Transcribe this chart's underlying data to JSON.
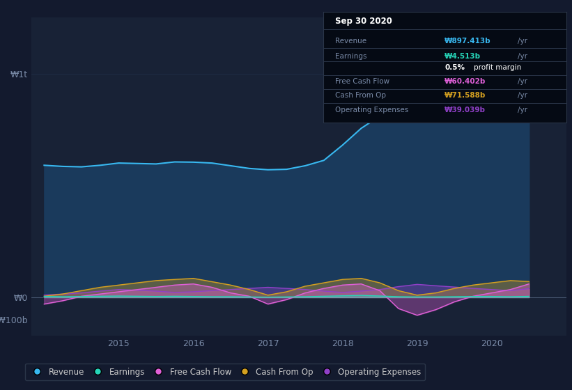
{
  "bg_color": "#131a2e",
  "plot_bg_color": "#182236",
  "grid_color": "#1e2d45",
  "ylabel_color": "#7a8ba8",
  "xtick_labels": [
    "2015",
    "2016",
    "2017",
    "2018",
    "2019",
    "2020"
  ],
  "revenue_color": "#38b8f0",
  "revenue_fill": "#1a3a5c",
  "earnings_color": "#26d4b8",
  "fcf_color": "#e060d8",
  "cashfromop_color": "#d4a020",
  "opex_color": "#9040c8",
  "legend": [
    {
      "label": "Revenue",
      "color": "#38b8f0"
    },
    {
      "label": "Earnings",
      "color": "#26d4b8"
    },
    {
      "label": "Free Cash Flow",
      "color": "#e060d8"
    },
    {
      "label": "Cash From Op",
      "color": "#d4a020"
    },
    {
      "label": "Operating Expenses",
      "color": "#9040c8"
    }
  ],
  "tooltip_bg": "#050a14",
  "tooltip_border": "#2a3548",
  "tooltip_title": "Sep 30 2020",
  "tooltip_rows": [
    {
      "label": "Revenue",
      "value": "₩897.413b",
      "unit": "/yr",
      "label_color": "#7a8ba8",
      "value_color": "#38b8f0"
    },
    {
      "label": "Earnings",
      "value": "₩4.513b",
      "unit": "/yr",
      "label_color": "#7a8ba8",
      "value_color": "#26d4b8"
    },
    {
      "label": "profit_margin",
      "value": "0.5%",
      "unit": "profit margin",
      "label_color": "#ffffff",
      "value_color": "#ffffff"
    },
    {
      "label": "Free Cash Flow",
      "value": "₩60.402b",
      "unit": "/yr",
      "label_color": "#7a8ba8",
      "value_color": "#e060d8"
    },
    {
      "label": "Cash From Op",
      "value": "₩71.588b",
      "unit": "/yr",
      "label_color": "#7a8ba8",
      "value_color": "#d4a020"
    },
    {
      "label": "Operating Expenses",
      "value": "₩39.039b",
      "unit": "/yr",
      "label_color": "#7a8ba8",
      "value_color": "#9040c8"
    }
  ],
  "quarters": [
    2014.0,
    2014.25,
    2014.5,
    2014.75,
    2015.0,
    2015.25,
    2015.5,
    2015.75,
    2016.0,
    2016.25,
    2016.5,
    2016.75,
    2017.0,
    2017.25,
    2017.5,
    2017.75,
    2018.0,
    2018.25,
    2018.5,
    2018.75,
    2019.0,
    2019.25,
    2019.5,
    2019.75,
    2020.0,
    2020.25,
    2020.5
  ],
  "revenue": [
    590,
    585,
    583,
    590,
    600,
    598,
    596,
    605,
    604,
    600,
    588,
    576,
    570,
    572,
    588,
    612,
    680,
    755,
    810,
    848,
    870,
    875,
    855,
    845,
    835,
    848,
    897
  ],
  "earnings": [
    4,
    3,
    4,
    5,
    6,
    5,
    4,
    5,
    4,
    3,
    3,
    2,
    1,
    2,
    3,
    5,
    7,
    9,
    6,
    3,
    2,
    2,
    3,
    4,
    4,
    3,
    4.5
  ],
  "free_cash_flow": [
    -30,
    -15,
    5,
    15,
    25,
    35,
    45,
    55,
    60,
    45,
    20,
    5,
    -30,
    -10,
    20,
    40,
    55,
    60,
    30,
    -50,
    -80,
    -55,
    -20,
    5,
    20,
    35,
    60
  ],
  "cash_from_op": [
    5,
    15,
    30,
    45,
    55,
    65,
    75,
    80,
    85,
    70,
    55,
    35,
    10,
    25,
    50,
    65,
    80,
    85,
    65,
    30,
    10,
    20,
    40,
    55,
    65,
    75,
    71
  ],
  "op_expenses": [
    10,
    15,
    20,
    28,
    35,
    32,
    28,
    22,
    25,
    30,
    35,
    40,
    45,
    40,
    35,
    28,
    22,
    28,
    35,
    48,
    58,
    52,
    46,
    40,
    35,
    30,
    39
  ],
  "ylim": [
    -170,
    1250
  ],
  "xlim_start": 2013.83,
  "xlim_end": 2021.0
}
